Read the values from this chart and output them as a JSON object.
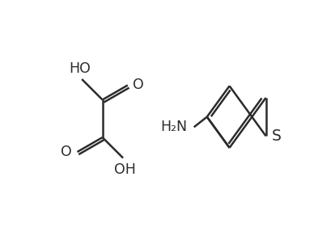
{
  "bg_color": "#ffffff",
  "line_color": "#2b2b2b",
  "line_width": 1.8,
  "font_size": 12.5,
  "fig_width": 3.93,
  "fig_height": 3.02,
  "dpi": 100,
  "xlim": [
    0,
    9
  ],
  "ylim": [
    0,
    7
  ]
}
